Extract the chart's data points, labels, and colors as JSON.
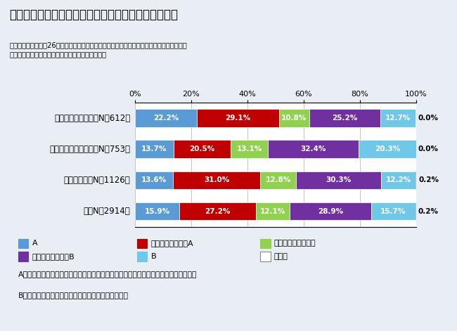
{
  "title": "図表１　就業継続見込み別の介護休業の趣旨理解割合",
  "subtitle": "（厚生労働省・平成26年度仕事と介護の両立支援事業「介護離職を予防するための両立支援\n対応モデル導入実証実験」における実態把握調査）",
  "categories": [
    "続けられると思う（N＝612）",
    "続けられないと思う（N＝753）",
    "わからない（N＝1126）",
    "計（N＝2914）"
  ],
  "segments": [
    "A",
    "どちらかと言うとA",
    "どちらとも言えない",
    "どちらかと言うとB",
    "B",
    "無回答"
  ],
  "colors": [
    "#5B9BD5",
    "#C00000",
    "#92D050",
    "#7030A0",
    "#70C8E8",
    "#FFFFFF"
  ],
  "data": [
    [
      22.2,
      29.1,
      10.8,
      25.2,
      12.7,
      0.0
    ],
    [
      13.7,
      20.5,
      13.1,
      32.4,
      20.3,
      0.0
    ],
    [
      13.6,
      31.0,
      12.8,
      30.3,
      12.2,
      0.2
    ],
    [
      15.9,
      27.2,
      12.1,
      28.9,
      15.7,
      0.2
    ]
  ],
  "text_color_on_bar": [
    "#FFFFFF",
    "#FFFFFF",
    "#FFFFFF",
    "#FFFFFF",
    "#FFFFFF",
    "#000000"
  ],
  "outer_bg": "#E8EEF4",
  "chart_bg": "#FFFFFF",
  "note_bg": "#D8EAF5",
  "note_border": "#7BAFD4",
  "note_text_line1": "A：介護休業期間は主に仕事を続けながら介護をするための体制を構築する期間である",
  "note_text_line2": "B：介護休業期間は介護に専念するための期間である"
}
